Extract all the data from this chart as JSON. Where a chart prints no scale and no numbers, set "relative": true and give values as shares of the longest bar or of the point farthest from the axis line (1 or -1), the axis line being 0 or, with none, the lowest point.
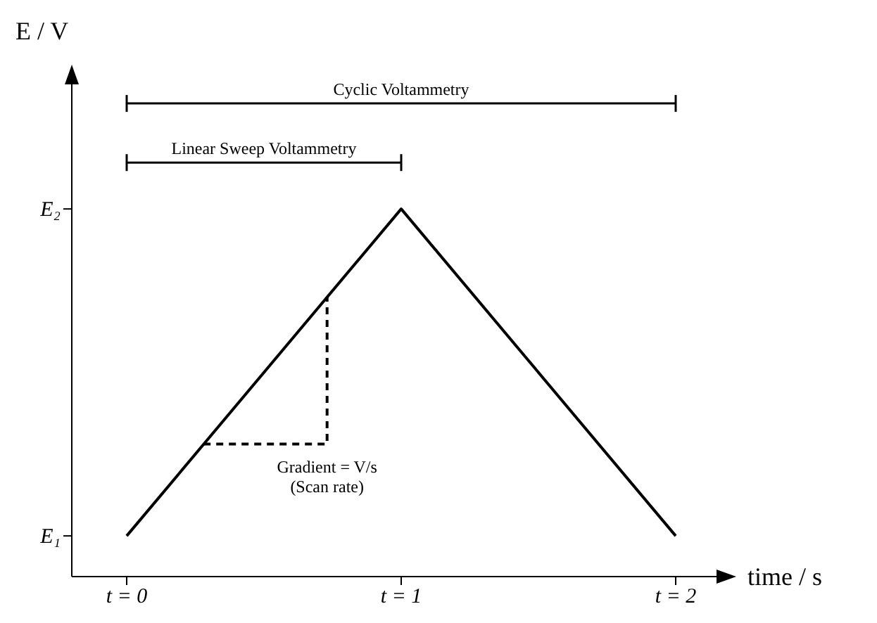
{
  "chart_data": {
    "type": "line",
    "xlabel": "time / s",
    "ylabel": "E / V",
    "relative": true,
    "xlim": [
      -0.2,
      2.2
    ],
    "xticks": [
      {
        "value": 0,
        "label": "t = 0"
      },
      {
        "value": 1,
        "label": "t = 1"
      },
      {
        "value": 2,
        "label": "t = 2"
      }
    ],
    "grid": false,
    "legend": false,
    "marker": "none",
    "series": [
      {
        "color": "#000000",
        "x": [
          0,
          1,
          2
        ],
        "values": [
          0.086,
          0.777,
          0.086
        ],
        "line_style": "solid"
      },
      {
        "color": "#000000",
        "x": [
          0.28,
          0.73,
          0.73
        ],
        "values": [
          0.28,
          0.28,
          0.59
        ],
        "line_style": "dashed"
      },
      {
        "name": "Cyclic Voltammetry",
        "color": "#000000",
        "x": [
          0,
          2
        ],
        "values": [
          1,
          1
        ],
        "line_style": "solid"
      },
      {
        "name": "Linear Sweep Voltammetry",
        "color": "#000000",
        "x": [
          0,
          1
        ],
        "values": [
          0.875,
          0.875
        ],
        "line_style": "solid"
      }
    ],
    "annotations": [
      {
        "text": "Gradient = V/s\n(Scan rate)",
        "x": 0.73,
        "y": 0.28
      },
      "E₁",
      "E₂"
    ]
  }
}
